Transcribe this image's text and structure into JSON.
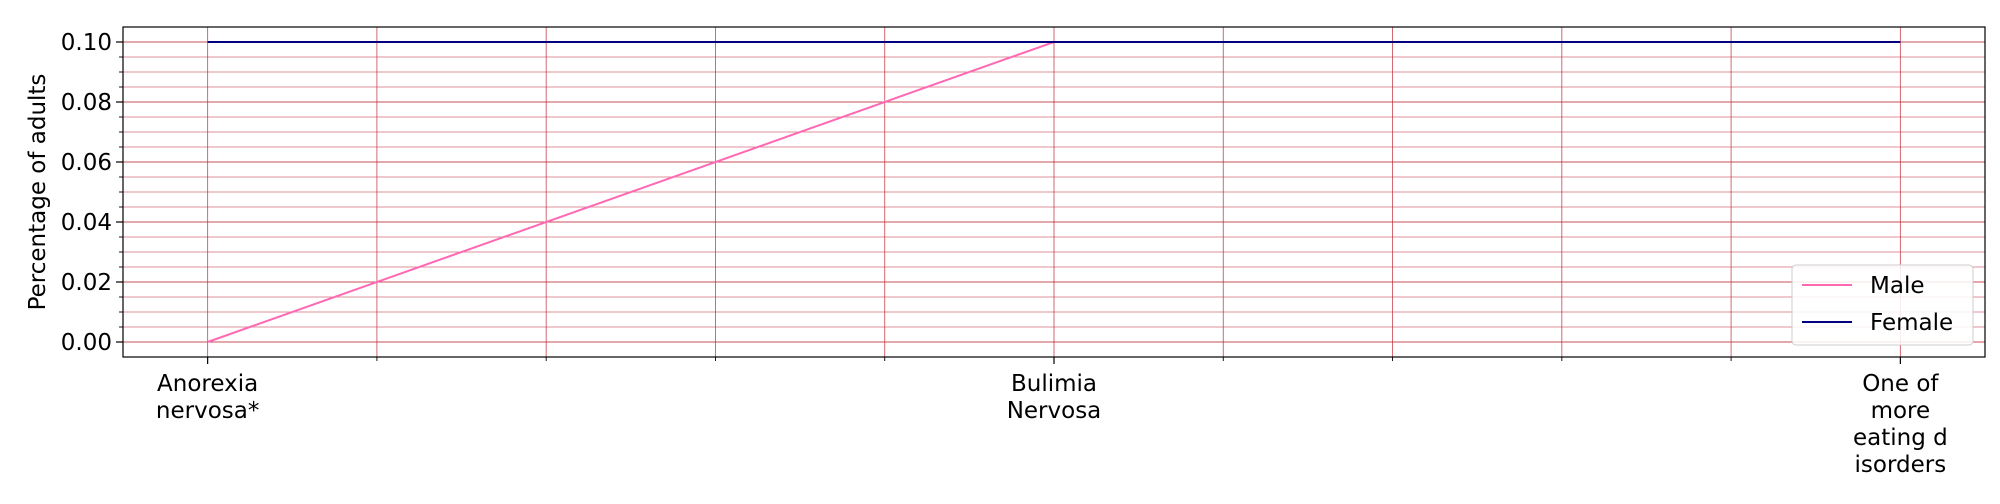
{
  "chart_data": {
    "type": "line",
    "categories": [
      [
        "Anorexia",
        "nervosa*"
      ],
      [
        "Bulimia",
        "Nervosa"
      ],
      [
        "One of",
        "more",
        "eating d",
        "isorders"
      ]
    ],
    "x_positions": [
      0,
      5,
      10
    ],
    "xlim": [
      -0.5,
      10.5
    ],
    "ylim": [
      -0.005,
      0.105
    ],
    "y_ticks": [
      "0.00",
      "0.02",
      "0.04",
      "0.06",
      "0.08",
      "0.10"
    ],
    "ylabel": "Percentage of adults",
    "grid": true,
    "legend_position": "lower-right",
    "series": [
      {
        "name": "Male",
        "color": "#ff69b4",
        "values": [
          0.0,
          0.1,
          0.1
        ]
      },
      {
        "name": "Female",
        "color": "#000080",
        "values": [
          0.1,
          0.1,
          0.1
        ]
      }
    ]
  }
}
